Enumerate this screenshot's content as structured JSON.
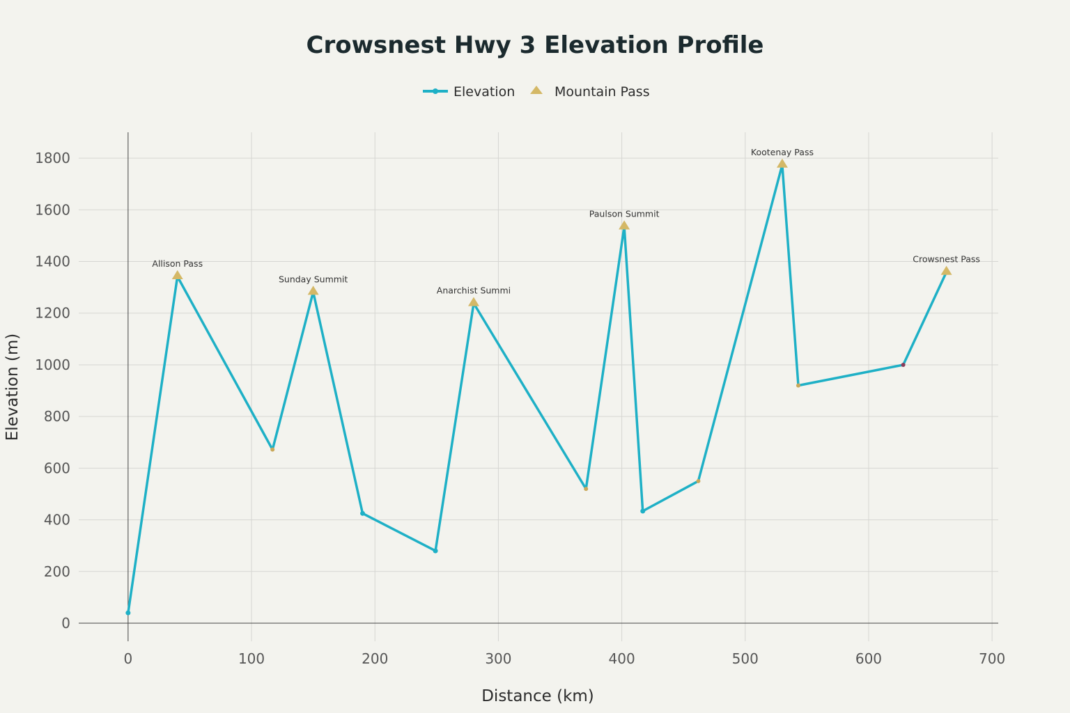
{
  "colors": {
    "background": "#f3f3ee",
    "elevation_line": "#1eb0c6",
    "pass_marker": "#d4b866",
    "low_marker": "#c9a85a",
    "special_marker": "#8a3b5a"
  },
  "chart_data": {
    "type": "line",
    "title": "Crowsnest Hwy 3 Elevation Profile",
    "xlabel": "Distance (km)",
    "ylabel": "Elevation (m)",
    "xlim": [
      -40,
      705
    ],
    "ylim": [
      -70,
      1900
    ],
    "x_ticks": [
      0,
      100,
      200,
      300,
      400,
      500,
      600,
      700
    ],
    "y_ticks": [
      0,
      200,
      400,
      600,
      800,
      1000,
      1200,
      1400,
      1600,
      1800
    ],
    "grid": true,
    "legend_position": "top-center",
    "legend": [
      {
        "name": "Elevation",
        "marker": "line-dot"
      },
      {
        "name": "Mountain Pass",
        "marker": "triangle"
      }
    ],
    "series": [
      {
        "name": "Elevation",
        "x": [
          0,
          40,
          117,
          150,
          190,
          249,
          280,
          371,
          402,
          417,
          462,
          530,
          543,
          628,
          663
        ],
        "y": [
          40,
          1342,
          672,
          1282,
          425,
          280,
          1238,
          520,
          1535,
          434,
          550,
          1774,
          920,
          1000,
          1359
        ],
        "point_kinds": [
          "normal",
          "pass",
          "low",
          "pass",
          "normal",
          "normal",
          "pass",
          "low",
          "pass",
          "normal",
          "low",
          "pass",
          "low",
          "special",
          "pass"
        ]
      },
      {
        "name": "Mountain Pass",
        "points": [
          {
            "x": 40,
            "y": 1342,
            "label": "Allison Pass"
          },
          {
            "x": 150,
            "y": 1282,
            "label": "Sunday Summit"
          },
          {
            "x": 280,
            "y": 1238,
            "label": "Anarchist Summi"
          },
          {
            "x": 402,
            "y": 1535,
            "label": "Paulson Summit"
          },
          {
            "x": 530,
            "y": 1774,
            "label": "Kootenay Pass"
          },
          {
            "x": 663,
            "y": 1359,
            "label": "Crowsnest Pass"
          }
        ]
      }
    ]
  }
}
